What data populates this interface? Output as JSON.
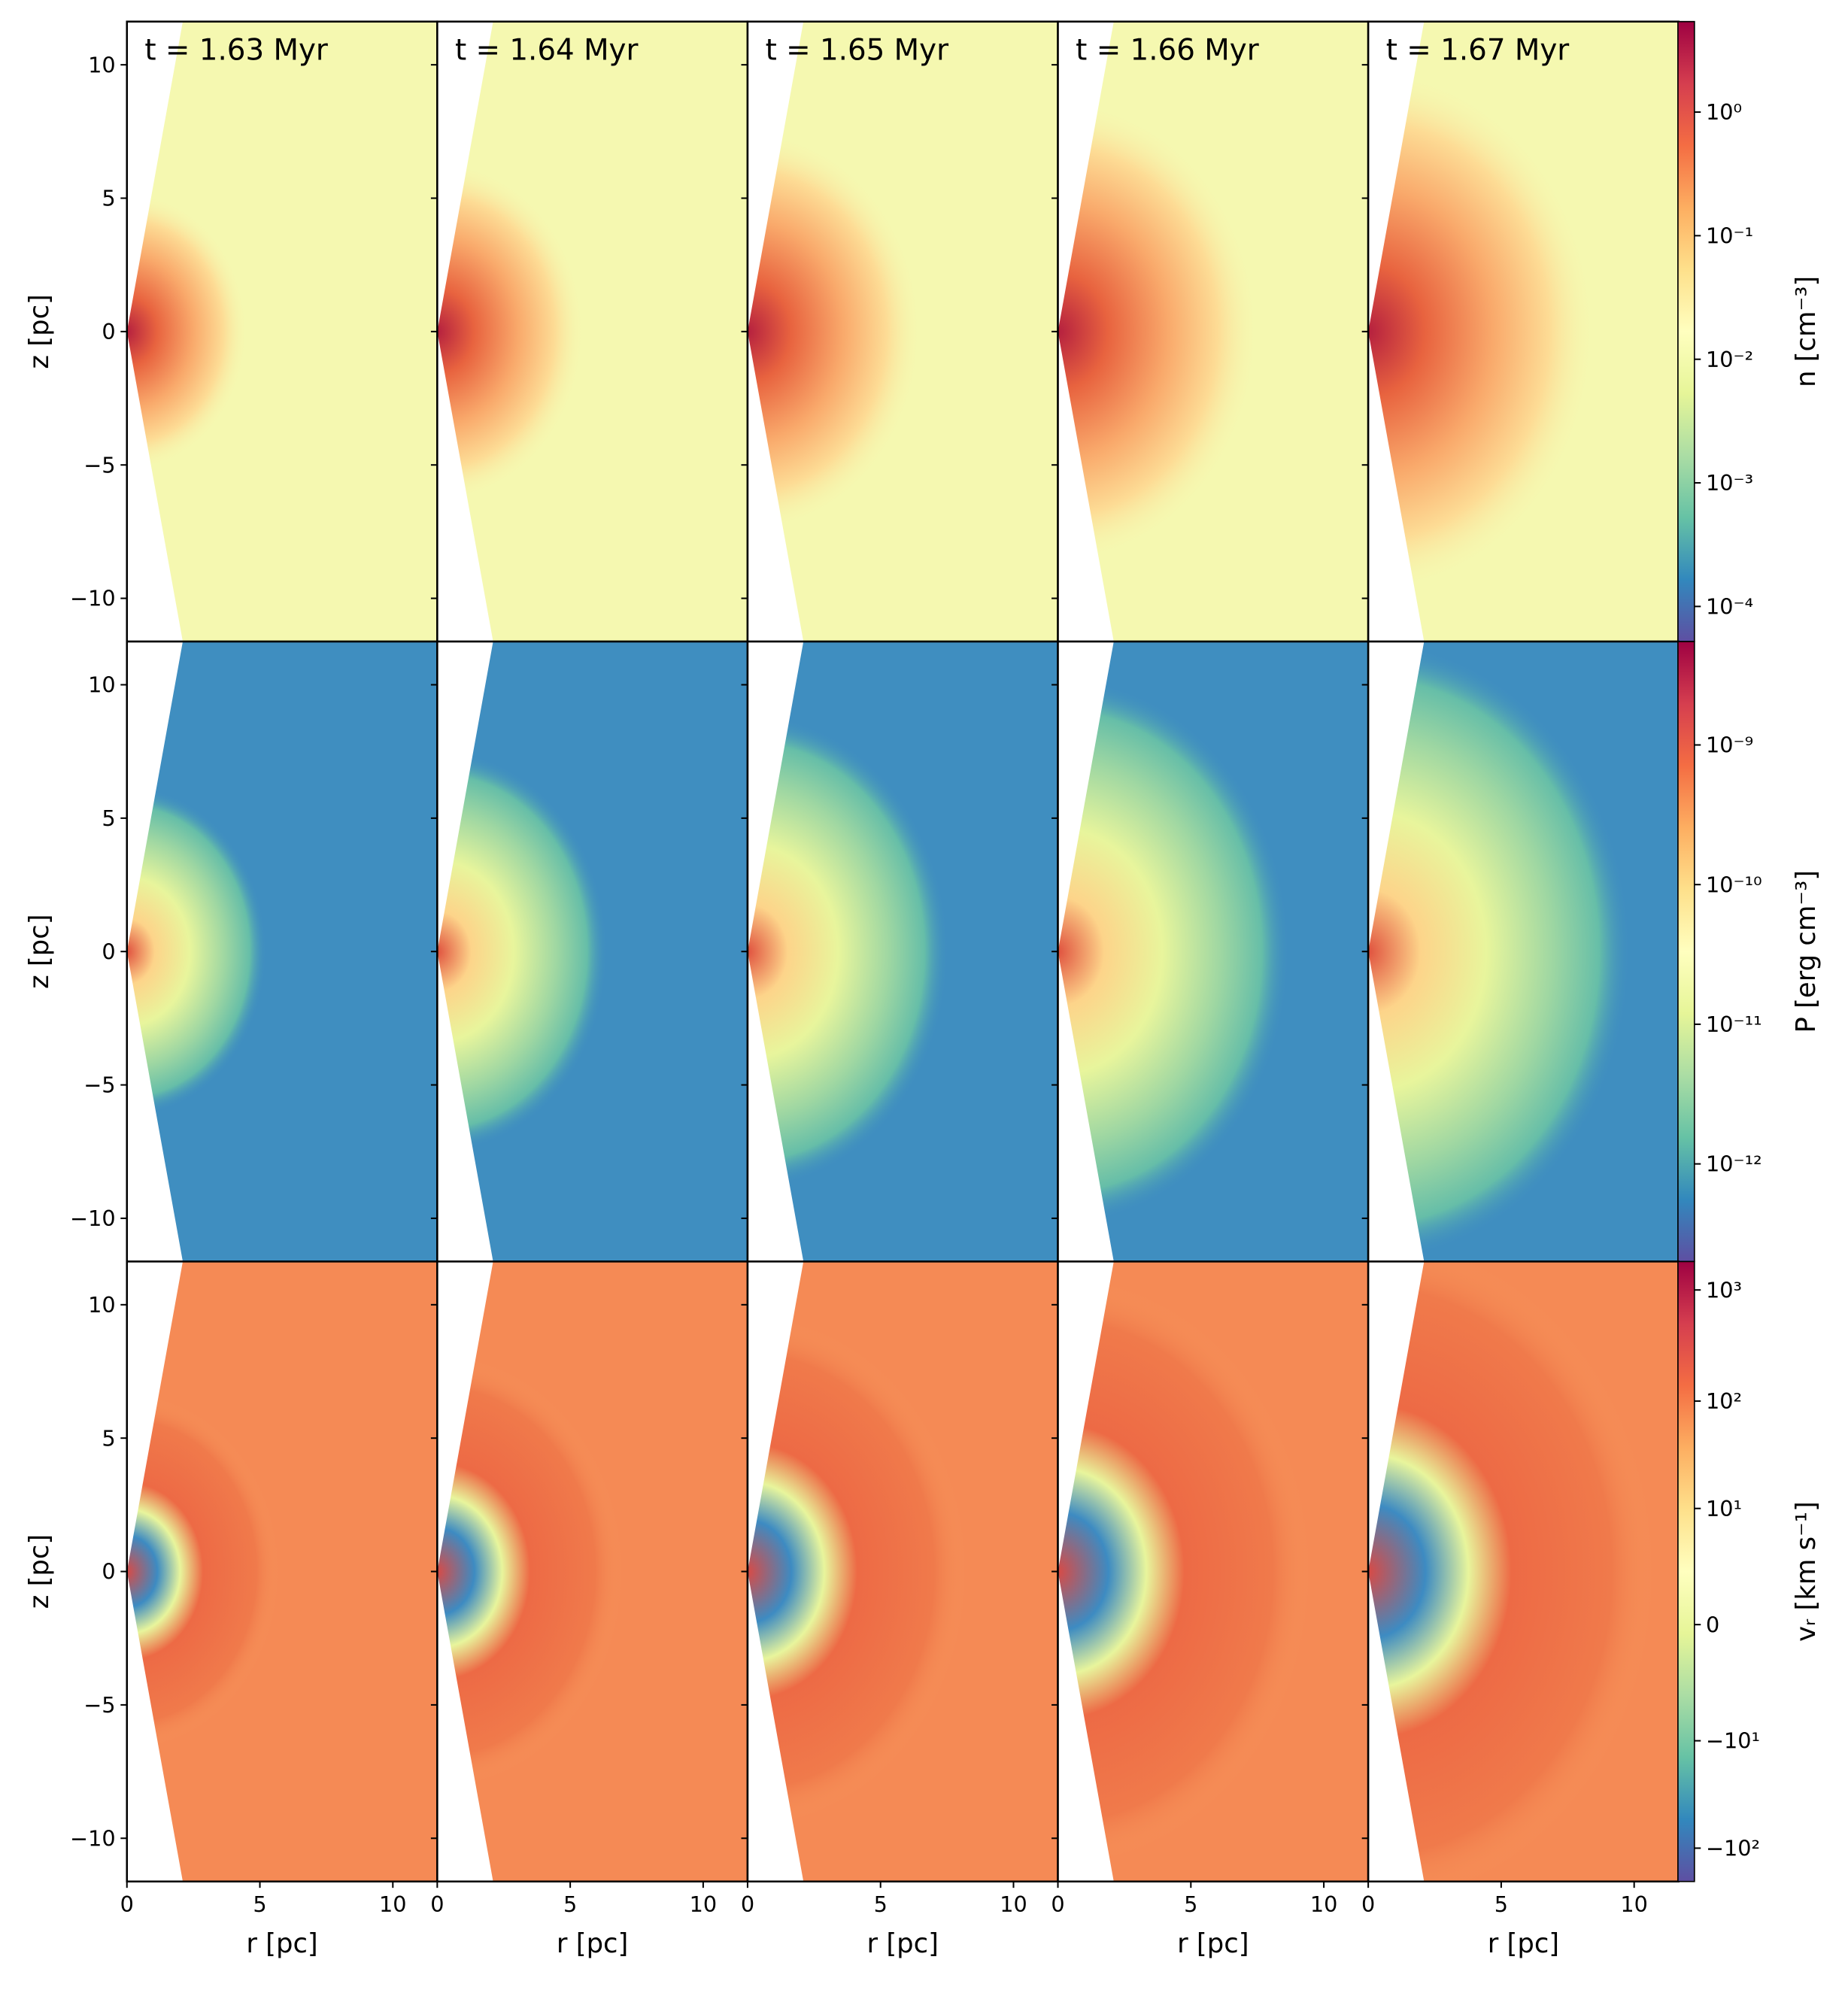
{
  "chart_data": {
    "type": "heatmap",
    "panel_titles": [
      "t = 1.63 Myr",
      "t = 1.64 Myr",
      "t = 1.65 Myr",
      "t = 1.66 Myr",
      "t = 1.67 Myr"
    ],
    "xlabel": "r [pc]",
    "ylabel": "z [pc]",
    "xlim": [
      0,
      11.67
    ],
    "xticks": [
      0,
      5,
      10
    ],
    "ylim": [
      -11.62,
      11.62
    ],
    "yticks": [
      {
        "value": -10,
        "label": "−10"
      },
      {
        "value": -5,
        "label": "−5"
      },
      0,
      5,
      10
    ],
    "rows": [
      {
        "colorbar_label": "n [cm⁻³]",
        "scale": "log",
        "clim": [
          5.2e-05,
          5.4
        ],
        "cticks": [
          {
            "value": 0.0001,
            "label": "10⁻⁴"
          },
          {
            "value": 0.001,
            "label": "10⁻³"
          },
          {
            "value": 0.01,
            "label": "10⁻²"
          },
          {
            "value": 0.1,
            "label": "10⁻¹"
          },
          {
            "value": 1,
            "label": "10⁰"
          }
        ]
      },
      {
        "colorbar_label": "P [erg cm⁻³]",
        "scale": "log",
        "clim": [
          2e-13,
          5.5e-09
        ],
        "cticks": [
          {
            "value": 1e-12,
            "label": "10⁻¹²"
          },
          {
            "value": 1e-11,
            "label": "10⁻¹¹"
          },
          {
            "value": 1e-10,
            "label": "10⁻¹⁰"
          },
          {
            "value": 1e-09,
            "label": "10⁻⁹"
          }
        ]
      },
      {
        "colorbar_label": "vᵣ [km s⁻¹]",
        "scale": "symlog",
        "linthresh": 1,
        "clim": [
          -200,
          1800
        ],
        "cticks": [
          {
            "value": -100,
            "label": "−10²"
          },
          {
            "value": -10,
            "label": "−10¹"
          },
          0,
          {
            "value": 10,
            "label": "10¹"
          },
          {
            "value": 100,
            "label": "10²"
          },
          {
            "value": 1000,
            "label": "10³"
          }
        ]
      }
    ]
  }
}
